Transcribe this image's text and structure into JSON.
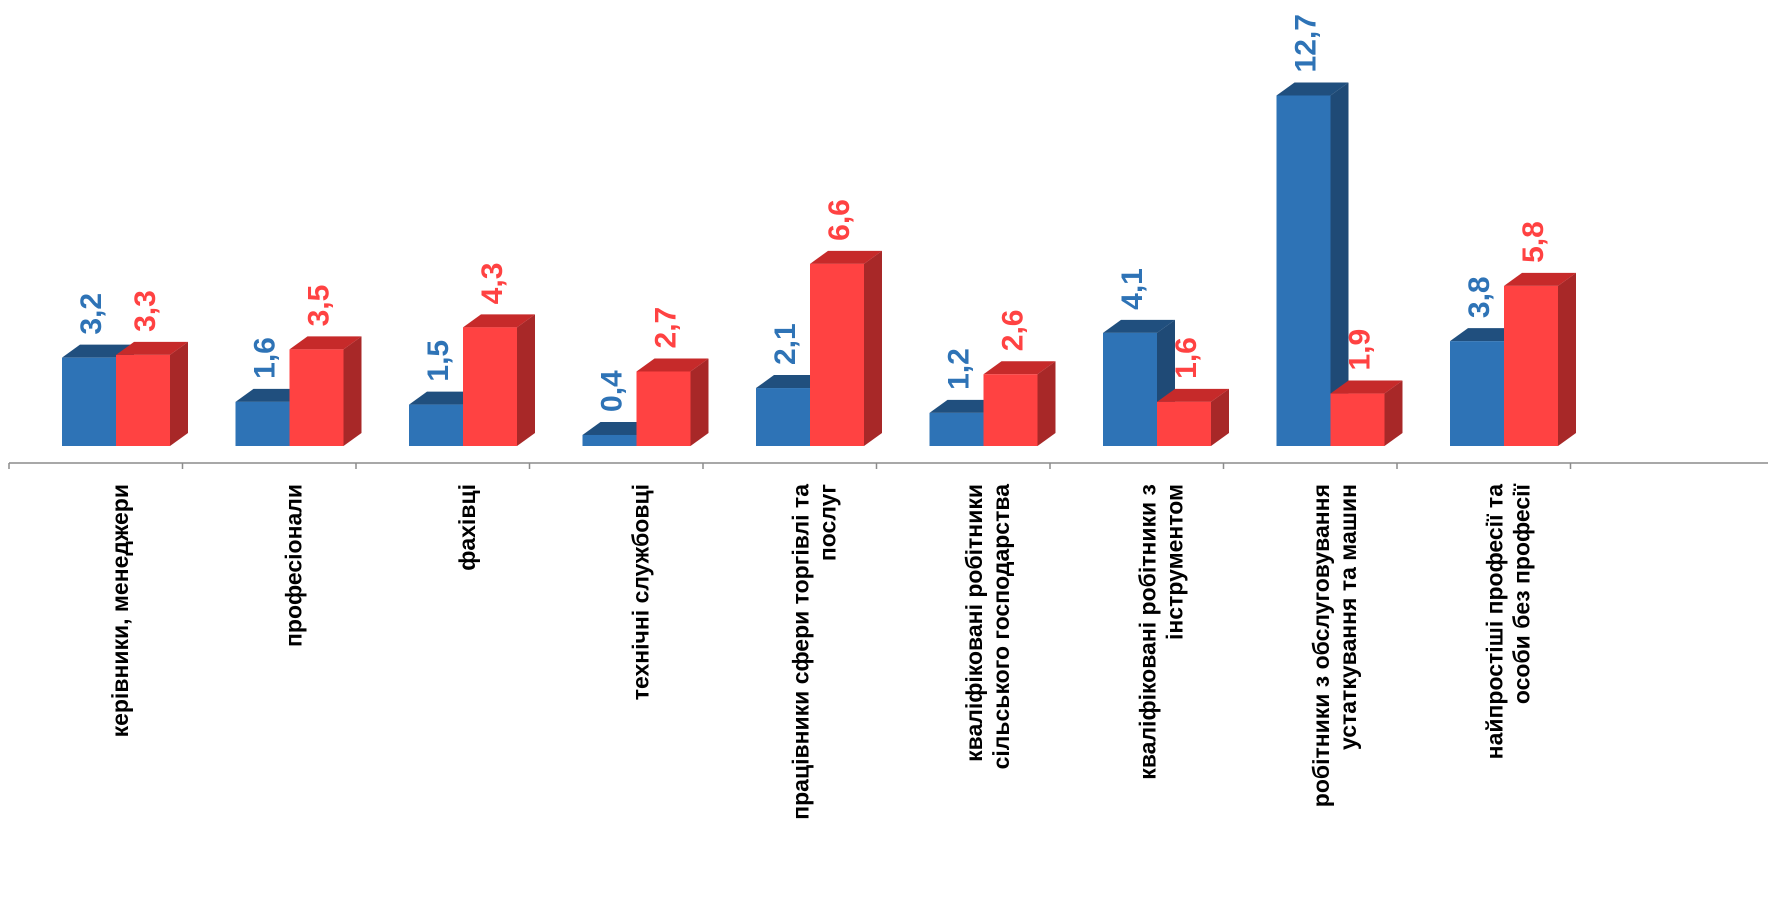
{
  "chart_data": {
    "type": "bar",
    "categories": [
      [
        "керівники, менеджери"
      ],
      [
        "професіонали"
      ],
      [
        "фахівці"
      ],
      [
        "технічні службовці"
      ],
      [
        "працівники сфери торгівлі та",
        "послуг"
      ],
      [
        "кваліфіковані робітники",
        "сільського господарства"
      ],
      [
        "кваліфіковані робітники з",
        "інструментом"
      ],
      [
        "робітники з обслуговування",
        "устаткування та машин"
      ],
      [
        "найпростіші професії та",
        "особи без професії"
      ]
    ],
    "series": [
      {
        "values": [
          3.2,
          1.6,
          1.5,
          0.4,
          2.1,
          1.2,
          4.1,
          12.7,
          3.8
        ],
        "labels": [
          "3,2",
          "1,6",
          "1,5",
          "0,4",
          "2,1",
          "1,2",
          "4,1",
          "12,7",
          "3,8"
        ],
        "color_front": "#2E73B6",
        "color_top": "#204F7E",
        "color_side": "#1F4A76",
        "label_color": "#2E73B6"
      },
      {
        "values": [
          3.3,
          3.5,
          4.3,
          2.7,
          6.6,
          2.6,
          1.6,
          1.9,
          5.8
        ],
        "labels": [
          "3,3",
          "3,5",
          "4,3",
          "2,7",
          "6,6",
          "2,6",
          "1,6",
          "1,9",
          "5,8"
        ],
        "color_front": "#FF4242",
        "color_top": "#C62A2A",
        "color_side": "#A82828",
        "label_color": "#FF4242"
      }
    ],
    "title": "",
    "xlabel": "",
    "ylabel": "",
    "legend": "none",
    "grid": false,
    "style": "3d-clustered-column"
  }
}
